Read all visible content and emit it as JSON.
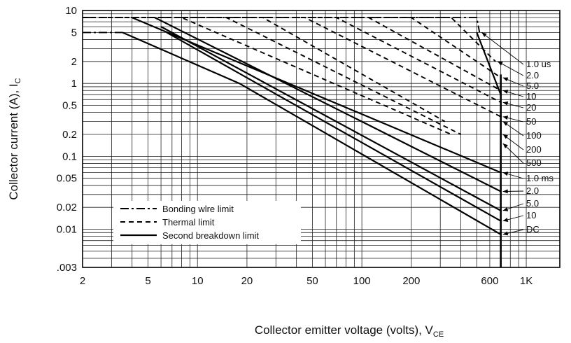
{
  "chart_data": {
    "type": "line",
    "xlabel": "Collector emitter voltage (volts), V",
    "xlabel_sub": "CE",
    "ylabel": "Collector current (A), I",
    "ylabel_sub": "C",
    "x_scale": "log",
    "y_scale": "log",
    "xlim": [
      2,
      1600
    ],
    "ylim": [
      0.003,
      10
    ],
    "grid": true,
    "x_ticks": [
      {
        "value": 2,
        "label": "2"
      },
      {
        "value": 5,
        "label": "5"
      },
      {
        "value": 10,
        "label": "10"
      },
      {
        "value": 20,
        "label": "20"
      },
      {
        "value": 50,
        "label": "50"
      },
      {
        "value": 100,
        "label": "100"
      },
      {
        "value": 200,
        "label": "200"
      },
      {
        "value": 600,
        "label": "600"
      },
      {
        "value": 1000,
        "label": "1K"
      }
    ],
    "y_ticks": [
      {
        "value": 10,
        "label": "10"
      },
      {
        "value": 5,
        "label": "5"
      },
      {
        "value": 2,
        "label": "2"
      },
      {
        "value": 1,
        "label": "1"
      },
      {
        "value": 0.5,
        "label": "0.5"
      },
      {
        "value": 0.2,
        "label": "0.2"
      },
      {
        "value": 0.1,
        "label": "0.1"
      },
      {
        "value": 0.05,
        "label": "0.05"
      },
      {
        "value": 0.02,
        "label": "0.02"
      },
      {
        "value": 0.01,
        "label": "0.01"
      },
      {
        "value": 0.003,
        "label": ".003"
      }
    ],
    "legend": {
      "placement": "bottom-left",
      "entries": [
        {
          "label": "Bonding wlre limit",
          "style": "dashdot"
        },
        {
          "label": "Thermal limit",
          "style": "dashed"
        },
        {
          "label": "Second breakdown limit",
          "style": "solid"
        }
      ]
    },
    "vertical_limit": {
      "x": 700,
      "y": [
        0.003,
        5
      ]
    },
    "vertical_limit_top": {
      "x": 510,
      "y": 5
    },
    "series": [
      {
        "label": "1.0 us",
        "points": [
          [
            2,
            8
          ],
          [
            500,
            8
          ],
          [
            520,
            5
          ]
        ],
        "style": "dashdot"
      },
      {
        "label": "2.0",
        "points": [
          [
            2,
            8
          ],
          [
            350,
            8
          ],
          [
            650,
            2
          ]
        ],
        "style": "dashed"
      },
      {
        "label": "5.0",
        "points": [
          [
            2,
            8
          ],
          [
            200,
            8
          ],
          [
            700,
            1.2
          ]
        ],
        "style": "dashed"
      },
      {
        "label": "10",
        "points": [
          [
            2,
            8
          ],
          [
            110,
            8
          ],
          [
            700,
            0.8
          ]
        ],
        "style": "dashed"
      },
      {
        "label": "20",
        "points": [
          [
            2,
            8
          ],
          [
            70,
            8
          ],
          [
            700,
            0.55
          ]
        ],
        "style": "dashed"
      },
      {
        "label": "50",
        "points": [
          [
            2,
            8
          ],
          [
            45,
            8
          ],
          [
            700,
            0.35
          ]
        ],
        "style": "dashed"
      },
      {
        "label": "100",
        "points": [
          [
            2,
            8
          ],
          [
            25,
            8
          ],
          [
            320,
            0.3
          ]
        ],
        "style": "dashed"
      },
      {
        "label": "200",
        "points": [
          [
            2,
            8
          ],
          [
            15,
            8
          ],
          [
            400,
            0.2
          ]
        ],
        "style": "dashed"
      },
      {
        "label": "500",
        "points": [
          [
            2,
            8
          ],
          [
            8,
            8
          ],
          [
            350,
            0.2
          ]
        ],
        "style": "dashed"
      },
      {
        "label": "1.0 ms",
        "points": [
          [
            4,
            8
          ],
          [
            700,
            0.06
          ]
        ],
        "style": "solid"
      },
      {
        "label": "2.0",
        "points": [
          [
            5.5,
            8
          ],
          [
            700,
            0.033
          ]
        ],
        "style": "solid"
      },
      {
        "label": "5.0",
        "points": [
          [
            6,
            6
          ],
          [
            700,
            0.018
          ]
        ],
        "style": "solid"
      },
      {
        "label": "10",
        "points": [
          [
            6.5,
            5
          ],
          [
            700,
            0.013
          ]
        ],
        "style": "solid"
      },
      {
        "label": "DC",
        "points": [
          [
            2,
            5
          ],
          [
            3.5,
            5
          ],
          [
            18,
            1
          ],
          [
            700,
            0.0085
          ]
        ],
        "style": "dashdot_then_solid"
      },
      {
        "label": "",
        "points": [
          [
            500,
            5
          ],
          [
            700,
            0.7
          ],
          [
            700,
            0.15
          ]
        ],
        "style": "solid"
      }
    ],
    "curve_labels": [
      "1.0 us",
      "2.0",
      "5.0",
      "10",
      "20",
      "50",
      "100",
      "200",
      "500",
      "1.0 ms",
      "2.0",
      "5.0",
      "10",
      "DC"
    ]
  }
}
